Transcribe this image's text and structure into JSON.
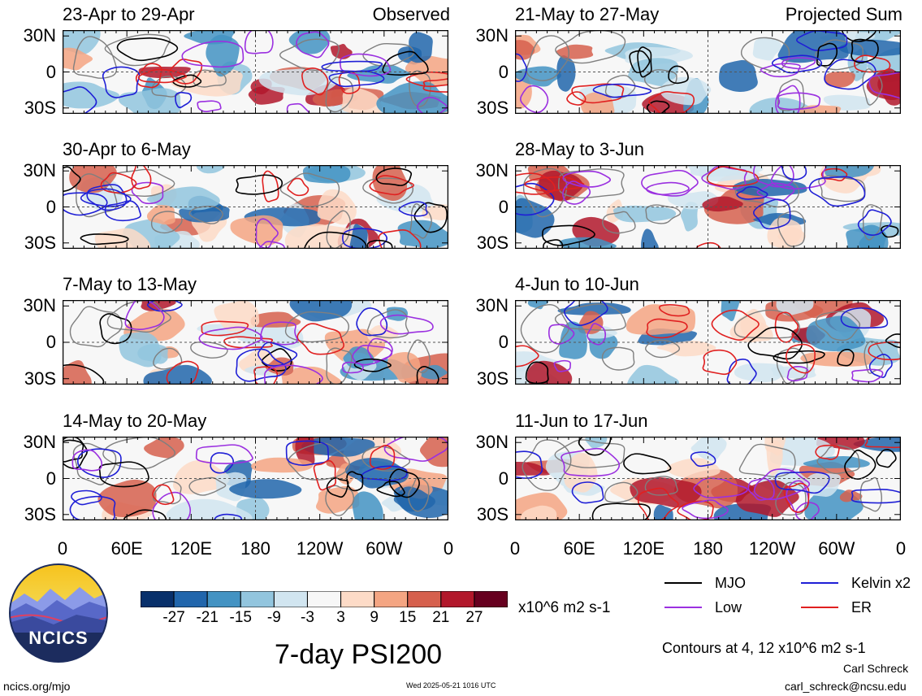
{
  "panel_tags": {
    "left": "Observed",
    "right": "Projected Sum"
  },
  "lat_labels": [
    "30N",
    "0",
    "30S"
  ],
  "lon_labels": [
    "0",
    "60E",
    "120E",
    "180",
    "120W",
    "60W",
    "0"
  ],
  "panels": [
    {
      "title": "23-Apr to 29-Apr",
      "seed": 11
    },
    {
      "title": "30-Apr to 6-May",
      "seed": 23
    },
    {
      "title": "7-May to 13-May",
      "seed": 37
    },
    {
      "title": "14-May to 20-May",
      "seed": 41
    },
    {
      "title": "21-May to 27-May",
      "seed": 53
    },
    {
      "title": "28-May to 3-Jun",
      "seed": 67
    },
    {
      "title": "4-Jun to 10-Jun",
      "seed": 71
    },
    {
      "title": "11-Jun to 17-Jun",
      "seed": 89
    }
  ],
  "colorbar": {
    "ticks": [
      "-27",
      "-21",
      "-15",
      "-9",
      "-3",
      "3",
      "9",
      "15",
      "21",
      "27"
    ],
    "colors": [
      "#08306b",
      "#2166ac",
      "#4393c3",
      "#92c5de",
      "#d1e5f0",
      "#f7f7f7",
      "#fddbc7",
      "#f4a582",
      "#d6604d",
      "#b2182b",
      "#67001f"
    ],
    "units": "x10^6 m2 s-1"
  },
  "legend": [
    {
      "label": "MJO",
      "color": "#000000"
    },
    {
      "label": "Kelvin x2",
      "color": "#1f1fd6"
    },
    {
      "label": "Low",
      "color": "#9b30e0"
    },
    {
      "label": "ER",
      "color": "#e02020"
    }
  ],
  "contours_note": "Contours at 4, 12 x10^6 m2 s-1",
  "title": "7-day PSI200",
  "logo_text": "NCICS",
  "footer": {
    "url": "ncics.org/mjo",
    "timestamp": "Wed 2025-05-21 1016 UTC",
    "author": "Carl Schreck",
    "email": "carl_schreck@ncsu.edu"
  },
  "chart_data": {
    "type": "heatmap",
    "title": "7-day PSI200",
    "xlabel": "",
    "ylabel": "",
    "x_ticks": [
      "0",
      "60E",
      "120E",
      "180",
      "120W",
      "60W",
      "0"
    ],
    "y_ticks": [
      "30N",
      "0",
      "30S"
    ],
    "colorbar_levels": [
      -27,
      -21,
      -15,
      -9,
      -3,
      3,
      9,
      15,
      21,
      27
    ],
    "colorbar_units": "x10^6 m2 s-1",
    "contour_levels": [
      4,
      12
    ],
    "series": [
      {
        "name": "MJO"
      },
      {
        "name": "Kelvin x2"
      },
      {
        "name": "Low"
      },
      {
        "name": "ER"
      }
    ],
    "panels": [
      "23-Apr to 29-Apr",
      "30-Apr to 6-May",
      "7-May to 13-May",
      "14-May to 20-May",
      "21-May to 27-May",
      "28-May to 3-Jun",
      "4-Jun to 10-Jun",
      "11-Jun to 17-Jun"
    ]
  }
}
